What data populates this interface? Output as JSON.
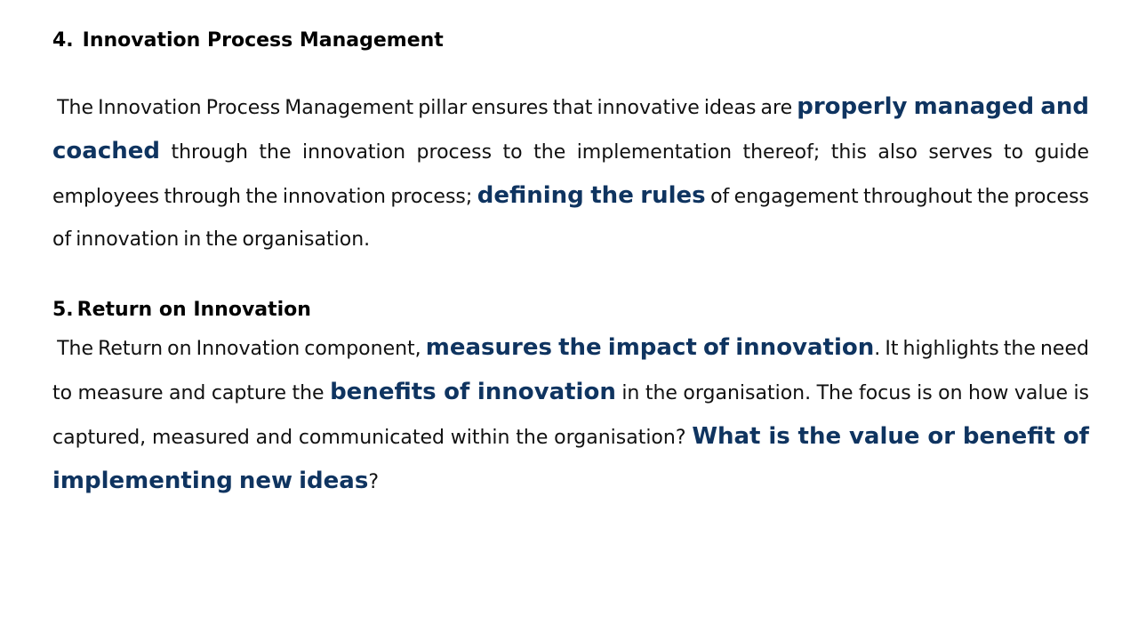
{
  "section4": {
    "number": "4.",
    "title": "Innovation Process Management",
    "body": {
      "t1": "The Innovation Process Management pillar ensures that innovative ideas are ",
      "h1": "properly managed and coached",
      "t2": " through the innovation process to the implementation thereof; this also serves to guide employees through the innovation process; ",
      "h2": "defining the rules",
      "t3": " of engagement throughout the process of innovation in the organisation."
    }
  },
  "section5": {
    "number": "5.",
    "title": "Return on Innovation",
    "body": {
      "t1": "The Return on Innovation component, ",
      "h1": "measures the impact of innovation",
      "t2": ". It highlights the need to measure and capture the ",
      "h2": "benefits of innovation",
      "t3": " in the organisation. The focus is on how value is captured, measured and communicated within the organisation? ",
      "h3": "What is the value or benefit of implementing new ideas",
      "t4": "?"
    }
  },
  "colors": {
    "highlight": "#0f3460",
    "text": "#111111",
    "background": "#ffffff"
  }
}
